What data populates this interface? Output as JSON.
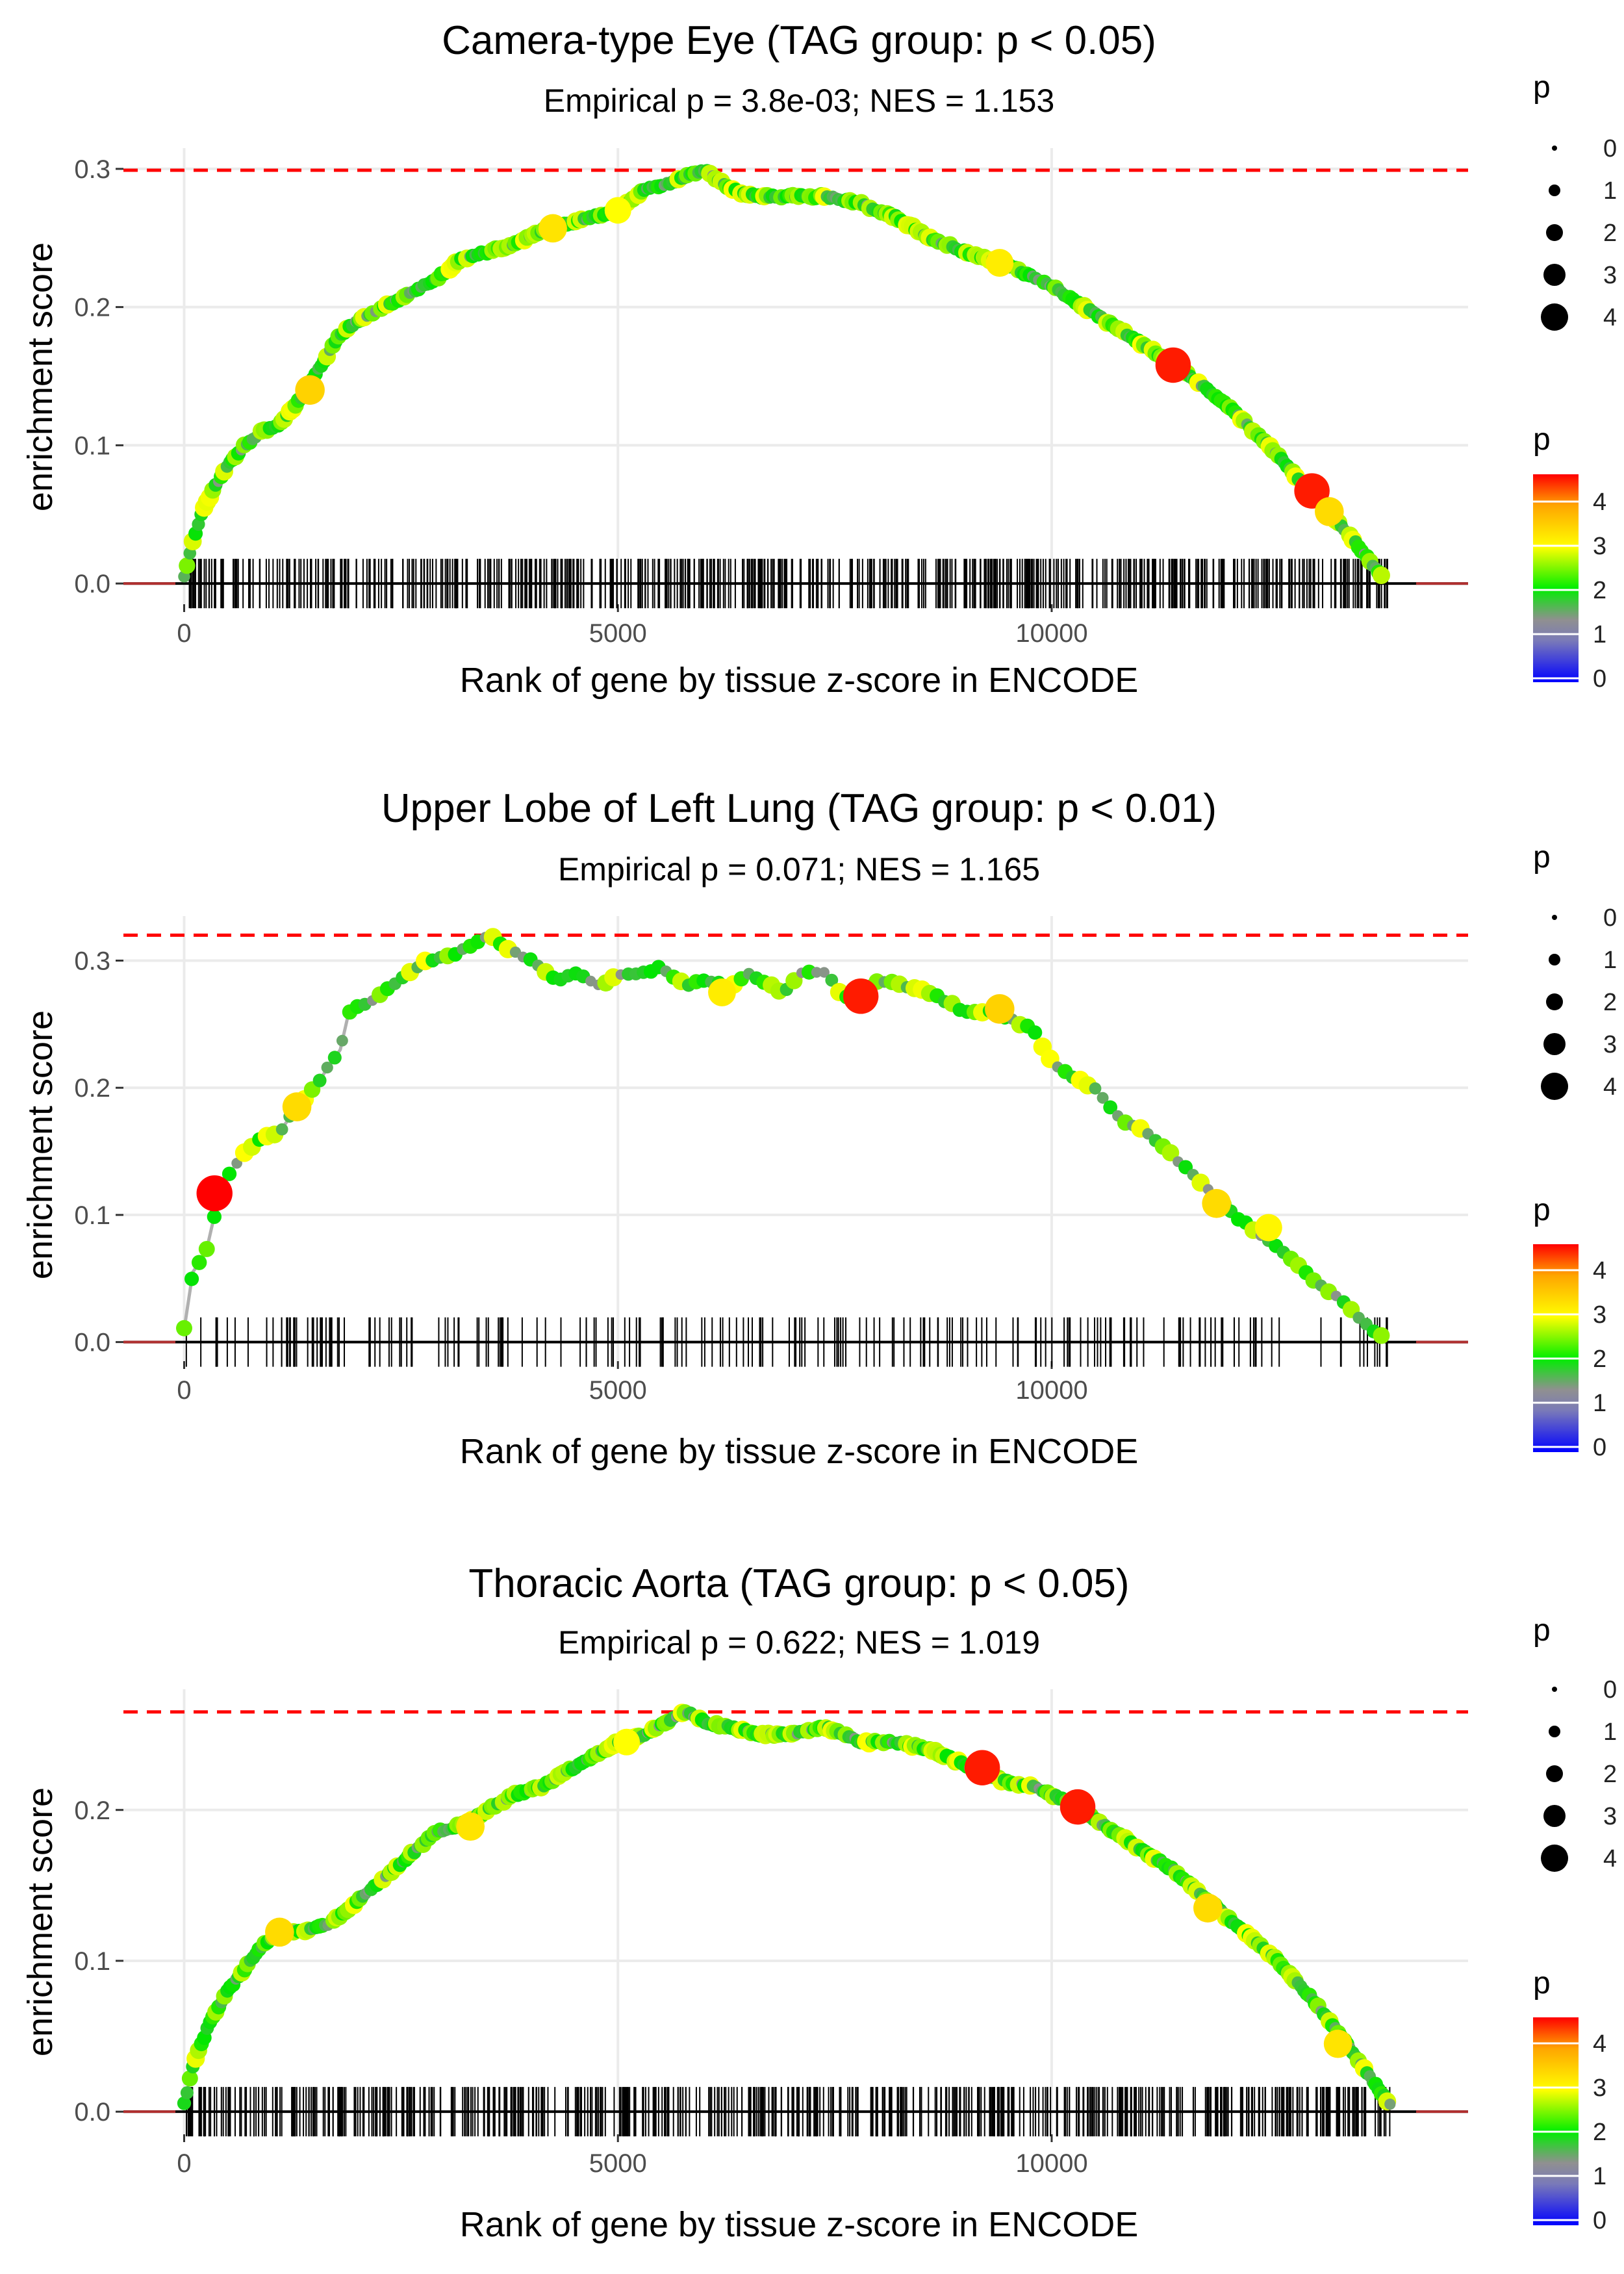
{
  "chart_data": [
    {
      "type": "line",
      "title": "Camera-type Eye (TAG group: p < 0.05)",
      "subtitle": "Empirical p = 3.8e-03; NES = 1.153",
      "xlabel": "Rank of gene by tissue z-score in ENCODE",
      "ylabel": "enrichment score",
      "xlim": [
        -700,
        14800
      ],
      "ylim": [
        -0.015,
        0.315
      ],
      "x_ticks": [
        0,
        5000,
        10000
      ],
      "x_tick_labels": [
        "0",
        "5000",
        "10000"
      ],
      "y_ticks": [
        0.0,
        0.1,
        0.2,
        0.3
      ],
      "y_tick_labels": [
        "0.0",
        "0.1",
        "0.2",
        "0.3"
      ],
      "max_es": 0.299,
      "curve": {
        "x": [
          0,
          100,
          200,
          350,
          500,
          700,
          900,
          1100,
          1300,
          1500,
          1800,
          2000,
          2300,
          2600,
          2900,
          3200,
          3500,
          3800,
          4100,
          4400,
          4700,
          5000,
          5300,
          5600,
          5900,
          6000,
          6300,
          6600,
          7000,
          7400,
          7800,
          8200,
          8600,
          9000,
          9500,
          10000,
          10500,
          11000,
          11500,
          12000,
          12500,
          13000,
          13500,
          13800
        ],
        "y": [
          0.005,
          0.03,
          0.05,
          0.07,
          0.085,
          0.1,
          0.11,
          0.115,
          0.13,
          0.15,
          0.18,
          0.19,
          0.2,
          0.21,
          0.22,
          0.235,
          0.24,
          0.245,
          0.255,
          0.26,
          0.265,
          0.27,
          0.285,
          0.29,
          0.297,
          0.299,
          0.285,
          0.28,
          0.28,
          0.28,
          0.275,
          0.265,
          0.25,
          0.24,
          0.23,
          0.215,
          0.195,
          0.175,
          0.155,
          0.13,
          0.1,
          0.065,
          0.03,
          0.005
        ]
      },
      "highlight_points": [
        {
          "x": 1450,
          "y": 0.14,
          "p": 3.5
        },
        {
          "x": 4250,
          "y": 0.257,
          "p": 3.3
        },
        {
          "x": 5000,
          "y": 0.27,
          "p": 3.0
        },
        {
          "x": 9400,
          "y": 0.232,
          "p": 3.2
        },
        {
          "x": 11400,
          "y": 0.158,
          "p": 4.5
        },
        {
          "x": 13000,
          "y": 0.067,
          "p": 4.5
        },
        {
          "x": 13200,
          "y": 0.052,
          "p": 3.4
        }
      ],
      "rug_count": 620,
      "rug_x_range": [
        0,
        13900
      ],
      "legend_size": {
        "title": "p",
        "values": [
          "0",
          "1",
          "2",
          "3",
          "4"
        ]
      },
      "legend_color": {
        "title": "p",
        "labels": [
          "4",
          "3",
          "2",
          "1",
          "0"
        ]
      }
    },
    {
      "type": "line",
      "title": "Upper Lobe of Left Lung (TAG group: p < 0.01)",
      "subtitle": "Empirical p = 0.071; NES = 1.165",
      "xlabel": "Rank of gene by tissue z-score in ENCODE",
      "ylabel": "enrichment score",
      "xlim": [
        -700,
        14800
      ],
      "ylim": [
        -0.015,
        0.335
      ],
      "x_ticks": [
        0,
        5000,
        10000
      ],
      "x_tick_labels": [
        "0",
        "5000",
        "10000"
      ],
      "y_ticks": [
        0.0,
        0.1,
        0.2,
        0.3
      ],
      "y_tick_labels": [
        "0.0",
        "0.1",
        "0.2",
        "0.3"
      ],
      "max_es": 0.32,
      "curve": {
        "x": [
          0,
          100,
          250,
          350,
          500,
          700,
          900,
          1100,
          1250,
          1500,
          1800,
          1900,
          2200,
          2500,
          2800,
          3100,
          3400,
          3550,
          3700,
          4000,
          4300,
          4500,
          4800,
          5000,
          5300,
          5500,
          5800,
          6000,
          6300,
          6500,
          6900,
          7100,
          7400,
          7600,
          7800,
          8000,
          8300,
          8600,
          9000,
          9300,
          9500,
          9800,
          10000,
          10200,
          10500,
          10800,
          11100,
          11500,
          11800,
          12100,
          12400,
          12700,
          13000,
          13300,
          13600,
          13800
        ],
        "y": [
          0.01,
          0.055,
          0.07,
          0.1,
          0.13,
          0.15,
          0.16,
          0.165,
          0.18,
          0.2,
          0.23,
          0.26,
          0.27,
          0.285,
          0.3,
          0.305,
          0.315,
          0.32,
          0.31,
          0.3,
          0.285,
          0.29,
          0.28,
          0.29,
          0.29,
          0.295,
          0.28,
          0.285,
          0.28,
          0.29,
          0.275,
          0.29,
          0.29,
          0.27,
          0.275,
          0.285,
          0.28,
          0.275,
          0.26,
          0.26,
          0.255,
          0.245,
          0.22,
          0.21,
          0.2,
          0.175,
          0.165,
          0.14,
          0.12,
          0.1,
          0.085,
          0.07,
          0.05,
          0.035,
          0.015,
          0.005
        ]
      },
      "highlight_points": [
        {
          "x": 350,
          "y": 0.117,
          "p": 4.6
        },
        {
          "x": 1300,
          "y": 0.185,
          "p": 3.4
        },
        {
          "x": 6200,
          "y": 0.275,
          "p": 3.2
        },
        {
          "x": 7800,
          "y": 0.272,
          "p": 4.5
        },
        {
          "x": 9400,
          "y": 0.262,
          "p": 3.5
        },
        {
          "x": 11900,
          "y": 0.109,
          "p": 3.4
        },
        {
          "x": 12500,
          "y": 0.09,
          "p": 3.1
        }
      ],
      "rug_count": 200,
      "rug_x_range": [
        0,
        13900
      ],
      "legend_size": {
        "title": "p",
        "values": [
          "0",
          "1",
          "2",
          "3",
          "4"
        ]
      },
      "legend_color": {
        "title": "p",
        "labels": [
          "4",
          "3",
          "2",
          "1",
          "0"
        ]
      }
    },
    {
      "type": "line",
      "title": "Thoracic Aorta (TAG group: p < 0.05)",
      "subtitle": "Empirical p = 0.622; NES = 1.019",
      "xlabel": "Rank of gene by tissue z-score in ENCODE",
      "ylabel": "enrichment score",
      "xlim": [
        -700,
        14800
      ],
      "ylim": [
        -0.015,
        0.28
      ],
      "x_ticks": [
        0,
        5000,
        10000
      ],
      "x_tick_labels": [
        "0",
        "5000",
        "10000"
      ],
      "y_ticks": [
        0.0,
        0.1,
        0.2
      ],
      "y_tick_labels": [
        "0.0",
        "0.1",
        "0.2"
      ],
      "max_es": 0.265,
      "curve": {
        "x": [
          0,
          100,
          300,
          500,
          700,
          900,
          1100,
          1400,
          1700,
          2000,
          2300,
          2600,
          2900,
          3200,
          3500,
          3800,
          4100,
          4400,
          4700,
          5000,
          5300,
          5600,
          5800,
          6000,
          6300,
          6600,
          7000,
          7400,
          7800,
          8200,
          8600,
          9000,
          9400,
          9800,
          10200,
          10600,
          11000,
          11400,
          11800,
          12200,
          12600,
          13000,
          13400,
          13700,
          13900
        ],
        "y": [
          0.005,
          0.03,
          0.06,
          0.08,
          0.095,
          0.11,
          0.12,
          0.12,
          0.125,
          0.14,
          0.155,
          0.17,
          0.185,
          0.19,
          0.2,
          0.21,
          0.215,
          0.225,
          0.235,
          0.245,
          0.25,
          0.26,
          0.265,
          0.258,
          0.255,
          0.25,
          0.25,
          0.255,
          0.245,
          0.245,
          0.24,
          0.23,
          0.22,
          0.215,
          0.205,
          0.19,
          0.175,
          0.16,
          0.14,
          0.12,
          0.1,
          0.075,
          0.045,
          0.02,
          0.005
        ]
      },
      "highlight_points": [
        {
          "x": 1100,
          "y": 0.119,
          "p": 3.4
        },
        {
          "x": 3300,
          "y": 0.189,
          "p": 3.3
        },
        {
          "x": 5100,
          "y": 0.245,
          "p": 3.0
        },
        {
          "x": 9200,
          "y": 0.228,
          "p": 4.5
        },
        {
          "x": 10300,
          "y": 0.202,
          "p": 4.5
        },
        {
          "x": 11800,
          "y": 0.135,
          "p": 3.4
        },
        {
          "x": 13300,
          "y": 0.045,
          "p": 3.3
        }
      ],
      "rug_count": 620,
      "rug_x_range": [
        0,
        13900
      ],
      "legend_size": {
        "title": "p",
        "values": [
          "0",
          "1",
          "2",
          "3",
          "4"
        ]
      },
      "legend_color": {
        "title": "p",
        "labels": [
          "4",
          "3",
          "2",
          "1",
          "0"
        ]
      }
    }
  ]
}
